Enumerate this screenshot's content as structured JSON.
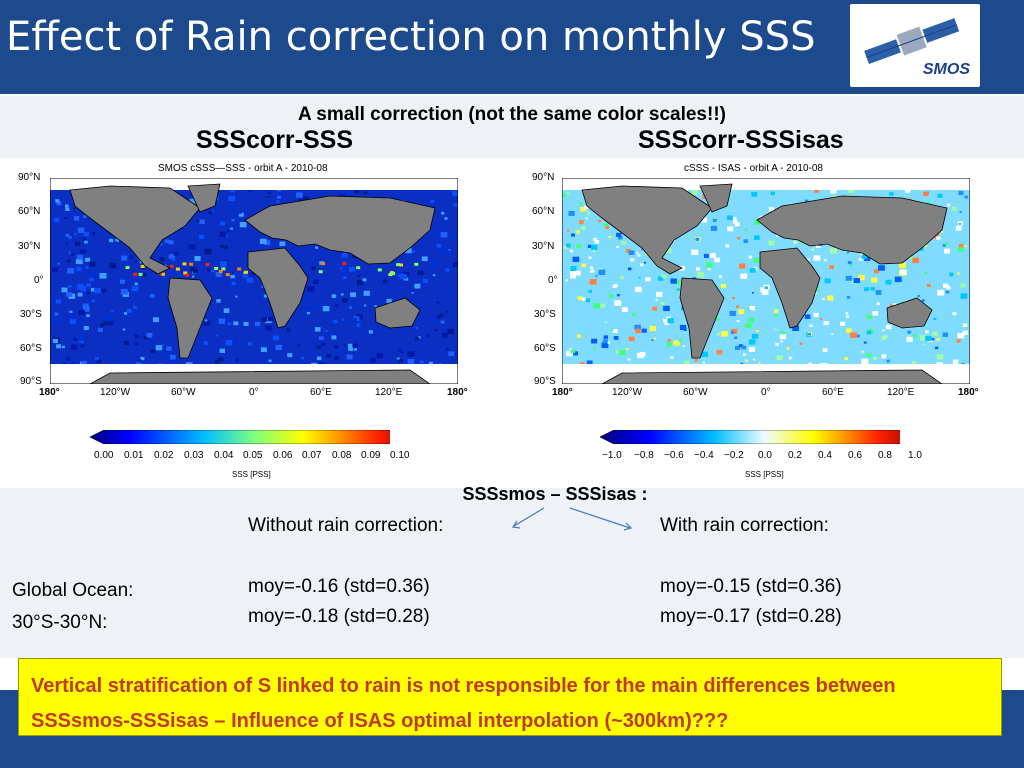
{
  "slide": {
    "title": "Effect of Rain correction on monthly SSS",
    "logo_text": "SMOS",
    "subtitle": "A small correction (not the same color scales!!)"
  },
  "panels": [
    {
      "heading": "SSScorr-SSS",
      "map_title": "SMOS cSSS—SSS - orbit A - 2010-08",
      "colorbar_ticks": [
        "0.00",
        "0.01",
        "0.02",
        "0.03",
        "0.04",
        "0.05",
        "0.06",
        "0.07",
        "0.08",
        "0.09",
        "0.10"
      ],
      "colorbar_label": "SSS [PSS]"
    },
    {
      "heading": "SSScorr-SSSisas",
      "map_title": "cSSS - ISAS - orbit A - 2010-08",
      "colorbar_ticks": [
        "−1.0",
        "−0.8",
        "−0.6",
        "−0.4",
        "−0.2",
        "0.0",
        "0.2",
        "0.4",
        "0.6",
        "0.8",
        "1.0"
      ],
      "colorbar_label": "SSS [PSS]"
    }
  ],
  "axes": {
    "lat_ticks": [
      "90°N",
      "60°N",
      "30°N",
      "0°",
      "30°S",
      "60°S",
      "90°S"
    ],
    "lon_ticks": [
      "180°",
      "120°W",
      "60°W",
      "0°",
      "60°E",
      "120°E",
      "180°"
    ]
  },
  "stats": {
    "heading": "SSSsmos – SSSisas :",
    "region_line1": "Global Ocean:",
    "region_line2": "30°S-30°N:",
    "without_label": "Without rain correction:",
    "with_label": "With rain correction:",
    "without_1": "moy=-0.16 (std=0.36)",
    "without_2": "moy=-0.18 (std=0.28)",
    "with_1": "moy=-0.15 (std=0.36)",
    "with_2": "moy=-0.17 (std=0.28)"
  },
  "conclusion": "Vertical stratification of S linked to rain is not responsible for the main differences between SSSsmos-SSSisas – Influence of ISAS optimal interpolation (~300km)???",
  "colors": {
    "header_bg": "#1d4a8c",
    "band_bg": "#eef2f7",
    "note_bg": "#ffff00",
    "note_text": "#c0392b",
    "land": "#808080"
  }
}
